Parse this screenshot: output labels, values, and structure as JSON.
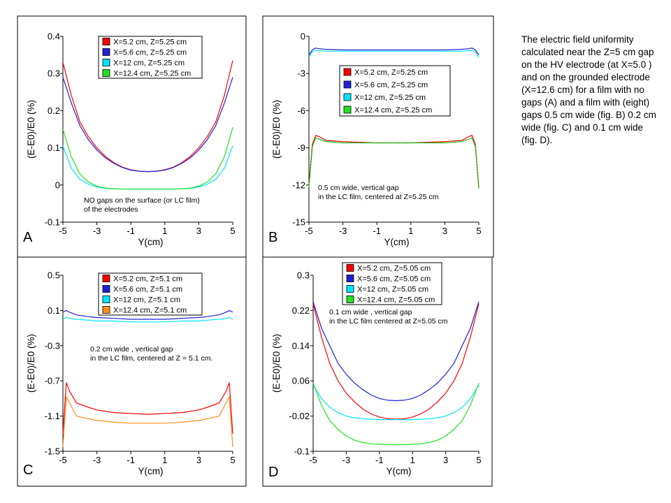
{
  "caption": "The electric field uniformity calculated near the Z=5 cm gap on the HV electrode (at X=5.0 ) and on the grounded electrode (X=12.6 cm) for a film with no gaps (A) and a film with (eight) gaps 0.5 cm wide (fig. B) 0.2 cm wide (fig. C) and 0.1 cm wide (fig. D).",
  "colors": {
    "red": "#ff0000",
    "blue": "#1f1fd6",
    "cyan": "#00e5ff",
    "green": "#22e022",
    "orange": "#ff8c1a"
  },
  "chart_data": [
    {
      "type": "line",
      "panel_letter": "A",
      "xlabel": "Y(cm)",
      "ylabel": "(E-E0)/E0 (%)",
      "xlim": [
        -5,
        5
      ],
      "ylim": [
        -0.1,
        0.4
      ],
      "xticks": [
        "-5",
        "-3",
        "-1",
        "1",
        "3",
        "5"
      ],
      "yticks": [
        "-0.1",
        "0",
        "0.1",
        "0.2",
        "0.3",
        "0.4"
      ],
      "annotation": [
        "NO gaps on the surface (or LC film)",
        "of the electrodes"
      ],
      "x": [
        -5,
        -4.5,
        -4,
        -3.5,
        -3,
        -2.5,
        -2,
        -1.5,
        -1,
        -0.5,
        0,
        0.5,
        1,
        1.5,
        2,
        2.5,
        3,
        3.5,
        4,
        4.5,
        5
      ],
      "series": [
        {
          "name": "X=5.2 cm, Z=5.25 cm",
          "color": "red",
          "values": [
            0.33,
            0.24,
            0.17,
            0.13,
            0.1,
            0.077,
            0.06,
            0.048,
            0.041,
            0.037,
            0.036,
            0.037,
            0.041,
            0.048,
            0.06,
            0.077,
            0.1,
            0.13,
            0.17,
            0.24,
            0.335
          ]
        },
        {
          "name": "X=5.6 cm, Z=5.25 cm",
          "color": "blue",
          "values": [
            0.29,
            0.22,
            0.16,
            0.122,
            0.094,
            0.073,
            0.058,
            0.047,
            0.04,
            0.037,
            0.036,
            0.037,
            0.04,
            0.047,
            0.058,
            0.073,
            0.094,
            0.122,
            0.16,
            0.22,
            0.29
          ]
        },
        {
          "name": "X=12 cm, Z=5.25 cm",
          "color": "cyan",
          "values": [
            0.105,
            0.045,
            0.015,
            0.002,
            -0.005,
            -0.009,
            -0.01,
            -0.011,
            -0.011,
            -0.011,
            -0.011,
            -0.011,
            -0.011,
            -0.011,
            -0.01,
            -0.009,
            -0.005,
            0.002,
            0.015,
            0.045,
            0.105
          ]
        },
        {
          "name": "X=12.4 cm, Z=5.25 cm",
          "color": "green",
          "values": [
            0.15,
            0.075,
            0.03,
            0.008,
            -0.003,
            -0.008,
            -0.01,
            -0.011,
            -0.011,
            -0.011,
            -0.011,
            -0.011,
            -0.011,
            -0.011,
            -0.01,
            -0.008,
            -0.003,
            0.008,
            0.03,
            0.075,
            0.155
          ]
        }
      ]
    },
    {
      "type": "line",
      "panel_letter": "B",
      "xlabel": "Y(cm)",
      "ylabel": "(E-E0)/E0 (%)",
      "xlim": [
        -5,
        5
      ],
      "ylim": [
        -15,
        0
      ],
      "xticks": [
        "-5",
        "-3",
        "-1",
        "1",
        "3",
        "5"
      ],
      "yticks": [
        "-15",
        "-12",
        "-9",
        "-6",
        "-3",
        "0"
      ],
      "annotation": [
        "0.5 cm wide, vertical gap",
        "in the LC film, centered at Z=5.25 cm"
      ],
      "x": [
        -5,
        -4.8,
        -4.6,
        -4.4,
        -4,
        -3,
        -2,
        -1,
        0,
        1,
        2,
        3,
        4,
        4.4,
        4.6,
        4.8,
        5
      ],
      "series": [
        {
          "name": "X=5.2 cm, Z=5.25 cm",
          "color": "red",
          "values": [
            -12,
            -8.7,
            -8.0,
            -8.1,
            -8.4,
            -8.5,
            -8.55,
            -8.6,
            -8.6,
            -8.6,
            -8.55,
            -8.5,
            -8.4,
            -8.1,
            -8.0,
            -8.7,
            -12.2
          ]
        },
        {
          "name": "X=5.6 cm, Z=5.25 cm",
          "color": "blue",
          "values": [
            -1.5,
            -1.1,
            -0.95,
            -1.0,
            -1.05,
            -1.1,
            -1.1,
            -1.1,
            -1.1,
            -1.1,
            -1.1,
            -1.1,
            -1.05,
            -1.0,
            -0.95,
            -1.1,
            -1.5
          ]
        },
        {
          "name": "X=12 cm, Z=5.25 cm",
          "color": "cyan",
          "values": [
            -1.7,
            -1.25,
            -1.15,
            -1.15,
            -1.2,
            -1.2,
            -1.2,
            -1.2,
            -1.2,
            -1.2,
            -1.2,
            -1.2,
            -1.2,
            -1.15,
            -1.15,
            -1.25,
            -1.7
          ]
        },
        {
          "name": "X=12.4 cm, Z=5.25 cm",
          "color": "green",
          "values": [
            -12.2,
            -8.9,
            -8.2,
            -8.3,
            -8.5,
            -8.6,
            -8.6,
            -8.6,
            -8.6,
            -8.6,
            -8.6,
            -8.6,
            -8.5,
            -8.3,
            -8.2,
            -8.9,
            -12.3
          ]
        }
      ]
    },
    {
      "type": "line",
      "panel_letter": "C",
      "xlabel": "Y(cm)",
      "ylabel": "(E-E0)/E0 (%)",
      "xlim": [
        -5,
        5
      ],
      "ylim": [
        -1.5,
        0.5
      ],
      "xticks": [
        "-5",
        "-3",
        "-1",
        "1",
        "3",
        "5"
      ],
      "yticks": [
        "-1.5",
        "-1.1",
        "-0.7",
        "-0.3",
        "0.1",
        "0.5"
      ],
      "annotation": [
        "0.2 cm wide , vertical gap",
        "in the LC film, centered at Z = 5.1 cm."
      ],
      "x": [
        -5,
        -4.8,
        -4.6,
        -4.2,
        -3.5,
        -3,
        -2,
        -1,
        0,
        1,
        2,
        3,
        3.5,
        4.2,
        4.6,
        4.8,
        5
      ],
      "series": [
        {
          "name": "X=5.2 cm, Z=5.1 cm",
          "color": "red",
          "values": [
            -1.3,
            -0.72,
            -0.82,
            -0.95,
            -1.0,
            -1.03,
            -1.06,
            -1.07,
            -1.08,
            -1.07,
            -1.06,
            -1.03,
            -1.0,
            -0.95,
            -0.82,
            -0.72,
            -1.3
          ]
        },
        {
          "name": "X=5.6 cm, Z=5.1 cm",
          "color": "blue",
          "values": [
            0.08,
            0.1,
            0.08,
            0.05,
            0.03,
            0.02,
            0.01,
            0.0,
            0.0,
            0.0,
            0.01,
            0.02,
            0.03,
            0.05,
            0.08,
            0.1,
            0.08
          ]
        },
        {
          "name": "X=12 cm, Z=5.1 cm",
          "color": "cyan",
          "values": [
            0.0,
            0.02,
            0.01,
            0.0,
            -0.01,
            -0.02,
            -0.02,
            -0.03,
            -0.03,
            -0.03,
            -0.02,
            -0.02,
            -0.01,
            0.0,
            0.01,
            0.02,
            0.0
          ]
        },
        {
          "name": "X=12.4 cm, Z=5.1 cm",
          "color": "orange",
          "values": [
            -1.45,
            -0.88,
            -0.95,
            -1.1,
            -1.13,
            -1.15,
            -1.17,
            -1.18,
            -1.18,
            -1.18,
            -1.17,
            -1.15,
            -1.13,
            -1.1,
            -0.95,
            -0.88,
            -1.45
          ]
        }
      ]
    },
    {
      "type": "line",
      "panel_letter": "D",
      "xlabel": "Y(cm)",
      "ylabel": "(E-E0)/E0 (%)",
      "xlim": [
        -5,
        5
      ],
      "ylim": [
        -0.1,
        0.3
      ],
      "xticks": [
        "-5",
        "-3",
        "-1",
        "1",
        "3",
        "5"
      ],
      "yticks": [
        "-0.1",
        "-0.02",
        "0.06",
        "0.14",
        "0.22",
        "0.3"
      ],
      "annotation": [
        "0.1 cm wide , vertical gap",
        "in the LC film centered at  Z=5.05 cm"
      ],
      "x": [
        -5,
        -4.5,
        -4,
        -3.5,
        -3,
        -2.5,
        -2,
        -1.5,
        -1,
        -0.5,
        0,
        0.5,
        1,
        1.5,
        2,
        2.5,
        3,
        3.5,
        4,
        4.5,
        5
      ],
      "series": [
        {
          "name": "X=5.2 cm, Z=5.05 cm",
          "color": "red",
          "values": [
            0.235,
            0.16,
            0.1,
            0.06,
            0.032,
            0.012,
            -0.004,
            -0.015,
            -0.022,
            -0.026,
            -0.027,
            -0.026,
            -0.022,
            -0.015,
            -0.004,
            0.012,
            0.032,
            0.06,
            0.1,
            0.16,
            0.235
          ]
        },
        {
          "name": "X=5.6 cm, Z=5.05 cm",
          "color": "blue",
          "values": [
            0.24,
            0.18,
            0.14,
            0.1,
            0.075,
            0.055,
            0.04,
            0.028,
            0.02,
            0.016,
            0.015,
            0.016,
            0.02,
            0.028,
            0.04,
            0.055,
            0.075,
            0.1,
            0.14,
            0.18,
            0.24
          ]
        },
        {
          "name": "X=12 cm, Z=5.05 cm",
          "color": "cyan",
          "values": [
            0.05,
            0.02,
            0.0,
            -0.012,
            -0.02,
            -0.024,
            -0.026,
            -0.027,
            -0.028,
            -0.028,
            -0.028,
            -0.028,
            -0.028,
            -0.027,
            -0.026,
            -0.024,
            -0.02,
            -0.012,
            0.0,
            0.02,
            0.05
          ]
        },
        {
          "name": "X=12.4 cm, Z=5.05 cm",
          "color": "green",
          "values": [
            0.055,
            0.005,
            -0.03,
            -0.05,
            -0.065,
            -0.075,
            -0.08,
            -0.083,
            -0.084,
            -0.085,
            -0.085,
            -0.085,
            -0.084,
            -0.083,
            -0.08,
            -0.075,
            -0.065,
            -0.05,
            -0.03,
            0.005,
            0.055
          ]
        }
      ]
    }
  ]
}
